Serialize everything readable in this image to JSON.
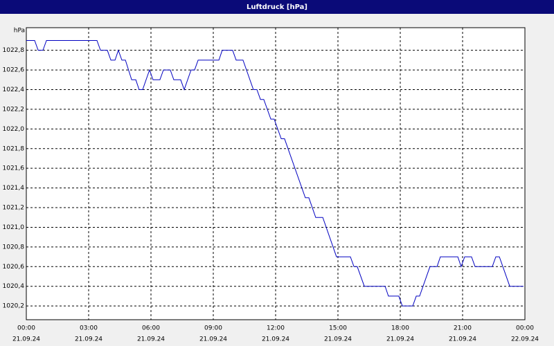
{
  "chart_data": {
    "type": "line",
    "title": "Luftdruck [hPa]",
    "y_unit": "hPa",
    "x": [
      0,
      0.4,
      0.57,
      0.8,
      0.97,
      3.4,
      3.57,
      3.9,
      4.07,
      4.27,
      4.43,
      4.6,
      4.77,
      5.07,
      5.27,
      5.43,
      5.6,
      5.93,
      6.1,
      6.43,
      6.6,
      6.93,
      7.1,
      7.43,
      7.6,
      7.93,
      8.1,
      8.27,
      9.27,
      9.43,
      9.93,
      10.1,
      10.43,
      10.93,
      11.1,
      11.27,
      11.43,
      11.77,
      11.93,
      12.27,
      12.43,
      13.43,
      13.6,
      13.93,
      14.27,
      14.93,
      15.6,
      15.77,
      15.93,
      16.27,
      17.27,
      17.43,
      17.93,
      18.1,
      18.6,
      18.77,
      18.93,
      19.43,
      19.77,
      19.93,
      20.77,
      20.93,
      21.1,
      21.43,
      21.6,
      22.43,
      22.6,
      22.77,
      23.27,
      23.93
    ],
    "series": [
      {
        "name": "Luftdruck",
        "color": "#0000c0",
        "values": [
          1022.9,
          1022.9,
          1022.8,
          1022.8,
          1022.9,
          1022.9,
          1022.8,
          1022.8,
          1022.7,
          1022.7,
          1022.8,
          1022.7,
          1022.7,
          1022.5,
          1022.5,
          1022.4,
          1022.4,
          1022.6,
          1022.5,
          1022.5,
          1022.6,
          1022.6,
          1022.5,
          1022.5,
          1022.4,
          1022.6,
          1022.6,
          1022.7,
          1022.7,
          1022.8,
          1022.8,
          1022.7,
          1022.7,
          1022.4,
          1022.4,
          1022.3,
          1022.3,
          1022.1,
          1022.1,
          1021.9,
          1021.9,
          1021.3,
          1021.3,
          1021.1,
          1021.1,
          1020.7,
          1020.7,
          1020.6,
          1020.6,
          1020.4,
          1020.4,
          1020.3,
          1020.3,
          1020.2,
          1020.2,
          1020.3,
          1020.3,
          1020.6,
          1020.6,
          1020.7,
          1020.7,
          1020.6,
          1020.7,
          1020.7,
          1020.6,
          1020.6,
          1020.7,
          1020.7,
          1020.4,
          1020.4
        ]
      }
    ],
    "xlim": [
      0,
      24
    ],
    "xticks": [
      {
        "value": 0,
        "label": "00:00"
      },
      {
        "value": 3,
        "label": "03:00"
      },
      {
        "value": 6,
        "label": "06:00"
      },
      {
        "value": 9,
        "label": "09:00"
      },
      {
        "value": 12,
        "label": "12:00"
      },
      {
        "value": 15,
        "label": "15:00"
      },
      {
        "value": 18,
        "label": "18:00"
      },
      {
        "value": 21,
        "label": "21:00"
      },
      {
        "value": 24,
        "label": "00:00"
      }
    ],
    "xtick_dates": [
      "21.09.24",
      "21.09.24",
      "21.09.24",
      "21.09.24",
      "21.09.24",
      "21.09.24",
      "21.09.24",
      "21.09.24",
      "22.09.24"
    ],
    "ylim": [
      1020.06,
      1023.03
    ],
    "yticks": [
      {
        "value": 1020.2,
        "label": "1020,2"
      },
      {
        "value": 1020.4,
        "label": "1020,4"
      },
      {
        "value": 1020.6,
        "label": "1020,6"
      },
      {
        "value": 1020.8,
        "label": "1020,8"
      },
      {
        "value": 1021.0,
        "label": "1021,0"
      },
      {
        "value": 1021.2,
        "label": "1021,2"
      },
      {
        "value": 1021.4,
        "label": "1021,4"
      },
      {
        "value": 1021.6,
        "label": "1021,6"
      },
      {
        "value": 1021.8,
        "label": "1021,8"
      },
      {
        "value": 1022.0,
        "label": "1022,0"
      },
      {
        "value": 1022.2,
        "label": "1022,2"
      },
      {
        "value": 1022.4,
        "label": "1022,4"
      },
      {
        "value": 1022.6,
        "label": "1022,6"
      },
      {
        "value": 1022.8,
        "label": "1022,8"
      }
    ],
    "grid": true
  }
}
